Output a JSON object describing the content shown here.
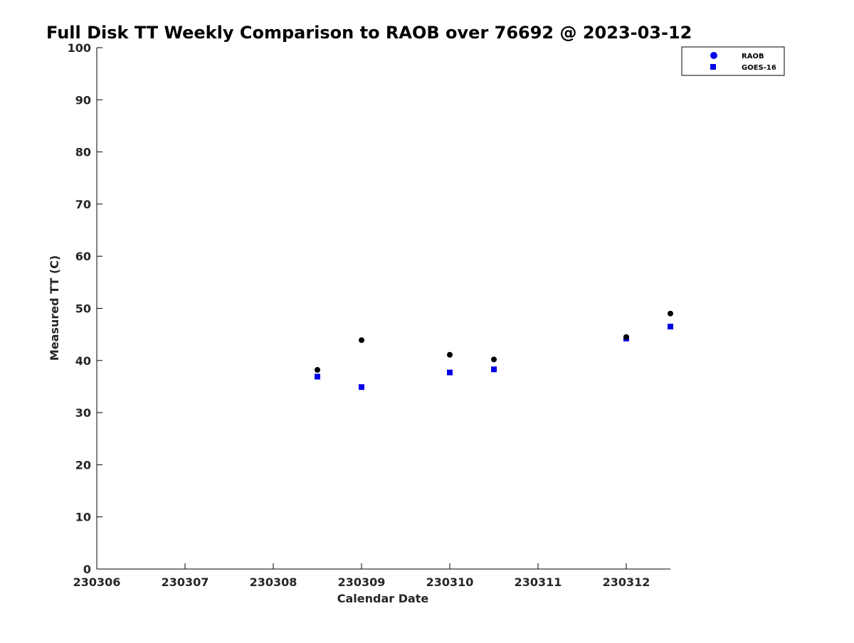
{
  "chart_data": {
    "type": "scatter",
    "title": "Full Disk TT Weekly Comparison to RAOB over 76692 @ 2023-03-12",
    "xlabel": "Calendar Date",
    "ylabel": "Measured TT (C)",
    "xlim": [
      "230306",
      "230312.5"
    ],
    "ylim": [
      0,
      100
    ],
    "x_ticks": [
      "230306",
      "230307",
      "230308",
      "230309",
      "230310",
      "230311",
      "230312"
    ],
    "y_ticks": [
      "0",
      "10",
      "20",
      "30",
      "40",
      "50",
      "60",
      "70",
      "80",
      "90",
      "100"
    ],
    "grid": false,
    "legend_position": "top-right",
    "series": [
      {
        "name": "RAOB",
        "marker": "circle",
        "color": "#000000",
        "legend_color": "#0000e6",
        "points": [
          {
            "x": "2023-03-08 12Z",
            "y": 38.2
          },
          {
            "x": "2023-03-09 00Z",
            "y": 43.9
          },
          {
            "x": "2023-03-10 00Z",
            "y": 41.1
          },
          {
            "x": "2023-03-10 12Z",
            "y": 40.2
          },
          {
            "x": "2023-03-12 00Z",
            "y": 44.5
          },
          {
            "x": "2023-03-12 12Z",
            "y": 49.0
          }
        ]
      },
      {
        "name": "GOES-16",
        "marker": "square",
        "color": "#0000e6",
        "legend_color": "#0000e6",
        "points": [
          {
            "x": "2023-03-08 12Z",
            "y": 36.9
          },
          {
            "x": "2023-03-09 00Z",
            "y": 34.9
          },
          {
            "x": "2023-03-10 00Z",
            "y": 37.7
          },
          {
            "x": "2023-03-10 12Z",
            "y": 38.3
          },
          {
            "x": "2023-03-12 00Z",
            "y": 44.2
          },
          {
            "x": "2023-03-12 12Z",
            "y": 46.5
          }
        ]
      }
    ]
  }
}
